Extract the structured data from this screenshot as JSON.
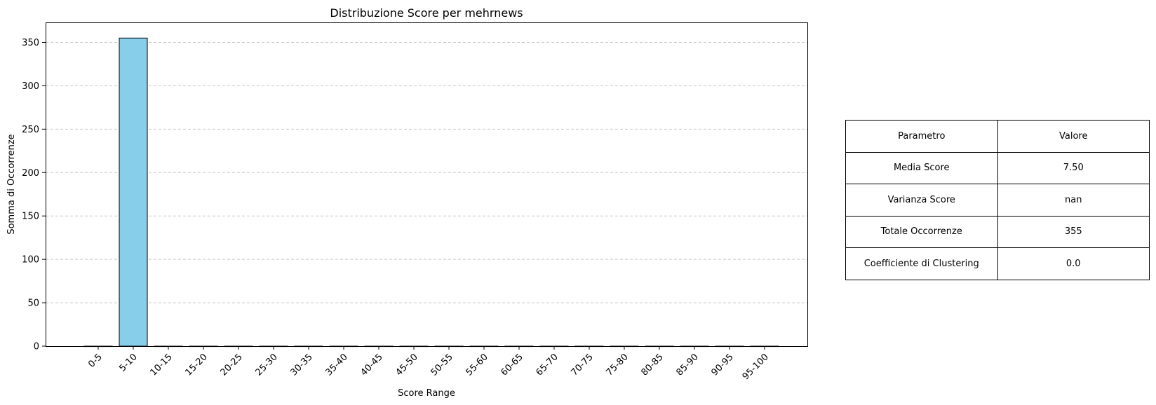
{
  "chart_data": {
    "type": "bar",
    "title": "Distribuzione Score per mehrnews",
    "xlabel": "Score Range",
    "ylabel": "Somma di Occorrenze",
    "categories": [
      "0-5",
      "5-10",
      "10-15",
      "15-20",
      "20-25",
      "25-30",
      "30-35",
      "35-40",
      "40-45",
      "45-50",
      "50-55",
      "55-60",
      "60-65",
      "65-70",
      "70-75",
      "75-80",
      "80-85",
      "85-90",
      "90-95",
      "95-100"
    ],
    "values": [
      0,
      355,
      0,
      0,
      0,
      0,
      0,
      0,
      0,
      0,
      0,
      0,
      0,
      0,
      0,
      0,
      0,
      0,
      0,
      0
    ],
    "ylim": [
      0,
      373
    ],
    "yticks": [
      0,
      50,
      100,
      150,
      200,
      250,
      300,
      350
    ],
    "grid": "y-dashed",
    "bar_color": "#87CEEB",
    "edge_color": "#000000"
  },
  "table": {
    "header": [
      "Parametro",
      "Valore"
    ],
    "rows": [
      [
        "Media Score",
        "7.50"
      ],
      [
        "Varianza Score",
        "nan"
      ],
      [
        "Totale Occorrenze",
        "355"
      ],
      [
        "Coefficiente di Clustering",
        "0.0"
      ]
    ]
  }
}
